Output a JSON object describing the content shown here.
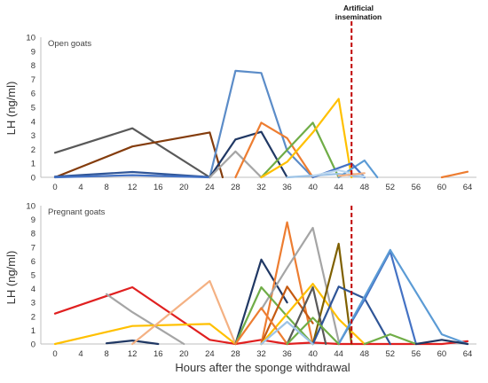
{
  "figure": {
    "xlabel": "Hours after the sponge withdrawal",
    "ylabel": "LH (ng/ml)",
    "annotation_line1": "Artificial",
    "annotation_line2": "insemination"
  },
  "chart_data": [
    {
      "type": "line",
      "title": "Open goats",
      "xlabel": "Hours after the sponge withdrawal",
      "ylabel": "LH (ng/ml)",
      "xlim": [
        0,
        64
      ],
      "ylim": [
        0,
        10
      ],
      "xticks": [
        0,
        4,
        8,
        12,
        16,
        20,
        24,
        28,
        32,
        36,
        40,
        44,
        48,
        52,
        56,
        60,
        64
      ],
      "yticks": [
        0,
        1,
        2,
        3,
        4,
        5,
        6,
        7,
        8,
        9,
        10
      ],
      "grid": false,
      "legend": "none",
      "reference_line": {
        "x": 46,
        "label": "Artificial insemination",
        "color": "#C00000",
        "style": "dashed"
      },
      "series": [
        {
          "color": "#595959",
          "x": [
            0,
            12,
            24
          ],
          "y": [
            1.75,
            3.5,
            0
          ]
        },
        {
          "color": "#843C0C",
          "x": [
            0,
            12,
            24,
            26
          ],
          "y": [
            0,
            2.2,
            3.2,
            0
          ]
        },
        {
          "color": "#2F5597",
          "x": [
            0,
            12,
            24
          ],
          "y": [
            0.05,
            0.38,
            0.02
          ]
        },
        {
          "color": "#4472C4",
          "x": [
            0,
            12,
            24
          ],
          "y": [
            0,
            0.15,
            0
          ]
        },
        {
          "color": "#5B8CC8",
          "x": [
            24,
            28,
            32,
            36,
            40
          ],
          "y": [
            0,
            7.6,
            7.45,
            1.9,
            0
          ]
        },
        {
          "color": "#203864",
          "x": [
            24,
            28,
            32,
            36
          ],
          "y": [
            0,
            2.7,
            3.25,
            0
          ]
        },
        {
          "color": "#A5A5A5",
          "x": [
            24,
            28,
            32
          ],
          "y": [
            0,
            1.85,
            0
          ]
        },
        {
          "color": "#ED7D31",
          "x": [
            28,
            32,
            36,
            40
          ],
          "y": [
            0,
            3.9,
            2.8,
            0
          ]
        },
        {
          "color": "#70AD47",
          "x": [
            32,
            40,
            44
          ],
          "y": [
            0,
            3.9,
            0
          ]
        },
        {
          "color": "#FFC000",
          "x": [
            32,
            36,
            40,
            44,
            46
          ],
          "y": [
            0,
            1.1,
            3.2,
            5.6,
            0
          ]
        },
        {
          "color": "#9DC3E6",
          "x": [
            36,
            44,
            48
          ],
          "y": [
            0,
            0.25,
            0
          ]
        },
        {
          "color": "#5B9BD5",
          "x": [
            44,
            48,
            50
          ],
          "y": [
            0,
            1.2,
            0
          ]
        },
        {
          "color": "#4472C4",
          "x": [
            40,
            46,
            48
          ],
          "y": [
            0,
            1.0,
            0
          ]
        },
        {
          "color": "#BDD7EE",
          "x": [
            40,
            44,
            48
          ],
          "y": [
            0.1,
            0.5,
            0.05
          ]
        },
        {
          "color": "#F4B183",
          "x": [
            44,
            48
          ],
          "y": [
            0.1,
            0.3
          ]
        },
        {
          "color": "#ED7D31",
          "x": [
            60,
            64
          ],
          "y": [
            0,
            0.4
          ]
        }
      ]
    },
    {
      "type": "line",
      "title": "Pregnant goats",
      "xlabel": "Hours after the sponge withdrawal",
      "ylabel": "LH (ng/ml)",
      "xlim": [
        0,
        64
      ],
      "ylim": [
        0,
        10
      ],
      "xticks": [
        0,
        4,
        8,
        12,
        16,
        20,
        24,
        28,
        32,
        36,
        40,
        44,
        48,
        52,
        56,
        60,
        64
      ],
      "yticks": [
        0,
        1,
        2,
        3,
        4,
        5,
        6,
        7,
        8,
        9,
        10
      ],
      "grid": false,
      "legend": "none",
      "reference_line": {
        "x": 46,
        "label": "Artificial insemination",
        "color": "#C00000",
        "style": "dashed"
      },
      "series": [
        {
          "color": "#E02020",
          "x": [
            0,
            12,
            24,
            28,
            32,
            36,
            40,
            44,
            48,
            52,
            56,
            60,
            64
          ],
          "y": [
            2.2,
            4.1,
            0.3,
            0,
            0.3,
            0,
            0.1,
            0,
            0,
            0,
            0,
            0,
            0.2
          ]
        },
        {
          "color": "#A5A5A5",
          "x": [
            8,
            12,
            20
          ],
          "y": [
            3.6,
            2.3,
            0
          ]
        },
        {
          "color": "#FFC000",
          "x": [
            0,
            12,
            24,
            28
          ],
          "y": [
            0,
            1.3,
            1.45,
            0
          ]
        },
        {
          "color": "#203864",
          "x": [
            8,
            12,
            16
          ],
          "y": [
            0.05,
            0.25,
            0
          ]
        },
        {
          "color": "#F4B183",
          "x": [
            12,
            24,
            28
          ],
          "y": [
            0,
            4.55,
            0
          ]
        },
        {
          "color": "#203864",
          "x": [
            28,
            32,
            36
          ],
          "y": [
            0,
            6.1,
            3.0
          ]
        },
        {
          "color": "#ED7D31",
          "x": [
            32,
            36,
            40
          ],
          "y": [
            0,
            8.8,
            0
          ]
        },
        {
          "color": "#A5A5A5",
          "x": [
            32,
            36,
            40,
            44
          ],
          "y": [
            2.5,
            5.5,
            8.4,
            0.2
          ]
        },
        {
          "color": "#70AD47",
          "x": [
            28,
            32,
            36,
            40
          ],
          "y": [
            0,
            4.1,
            2.0,
            0
          ]
        },
        {
          "color": "#C55A11",
          "x": [
            32,
            36,
            40
          ],
          "y": [
            0,
            4.15,
            1.5
          ]
        },
        {
          "color": "#FFC000",
          "x": [
            32,
            40,
            44,
            48
          ],
          "y": [
            0,
            4.35,
            1.8,
            0
          ]
        },
        {
          "color": "#7F6000",
          "x": [
            40,
            44,
            46
          ],
          "y": [
            0,
            7.25,
            0
          ]
        },
        {
          "color": "#595959",
          "x": [
            36,
            40,
            42
          ],
          "y": [
            0,
            4.1,
            0
          ]
        },
        {
          "color": "#2F5597",
          "x": [
            40,
            44,
            48,
            52
          ],
          "y": [
            0,
            4.15,
            3.3,
            0
          ]
        },
        {
          "color": "#4472C4",
          "x": [
            44,
            48,
            52,
            56
          ],
          "y": [
            0,
            3.2,
            6.7,
            0
          ]
        },
        {
          "color": "#5B9BD5",
          "x": [
            44,
            52,
            60,
            64
          ],
          "y": [
            0,
            6.8,
            0.7,
            0
          ]
        },
        {
          "color": "#70AD47",
          "x": [
            48,
            52,
            56
          ],
          "y": [
            0,
            0.7,
            0
          ]
        },
        {
          "color": "#1F3864",
          "x": [
            56,
            60,
            64
          ],
          "y": [
            0,
            0.3,
            0
          ]
        },
        {
          "color": "#ED7D31",
          "x": [
            28,
            32,
            36
          ],
          "y": [
            0,
            2.6,
            0
          ]
        },
        {
          "color": "#70AD47",
          "x": [
            36,
            40,
            44
          ],
          "y": [
            0,
            1.9,
            0
          ]
        },
        {
          "color": "#9DC3E6",
          "x": [
            32,
            36,
            40
          ],
          "y": [
            0,
            1.6,
            0
          ]
        }
      ]
    }
  ]
}
